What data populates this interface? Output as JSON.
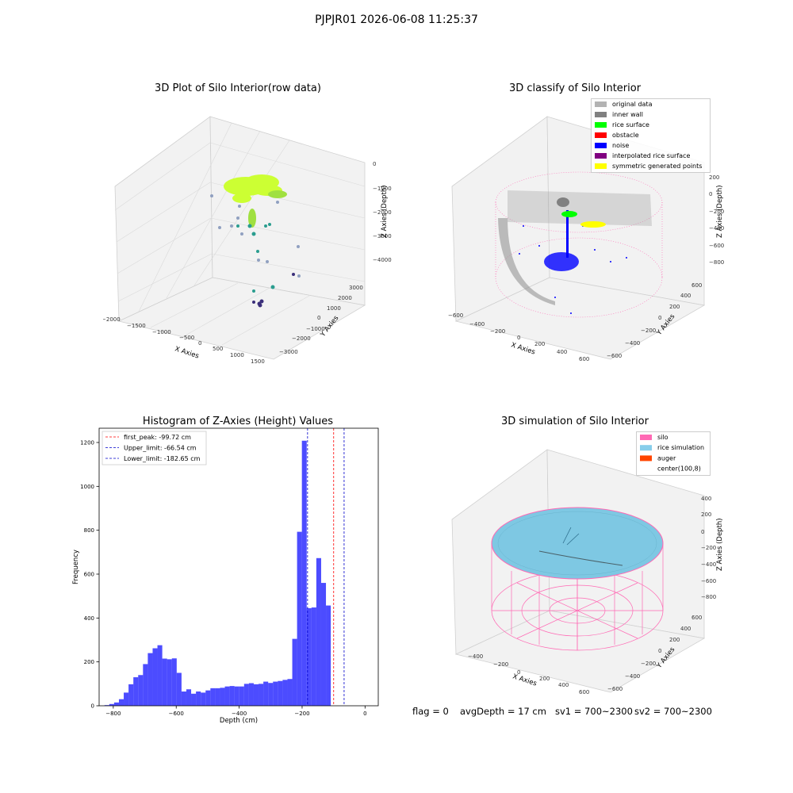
{
  "figure": {
    "suptitle": "PJPJR01 2026-06-08 11:25:37"
  },
  "panel_raw": {
    "title": "3D Plot of Silo Interior(row data)",
    "xlabel": "X Axies",
    "ylabel": "Y Axies",
    "zlabel": "Z Axies (Depth)",
    "x_ticks": [
      "−2000",
      "−1500",
      "−1000",
      "−500",
      "0",
      "500",
      "1000",
      "1500"
    ],
    "y_ticks": [
      "−3000",
      "−2000",
      "−1000",
      "0",
      "1000",
      "2000",
      "3000"
    ],
    "z_ticks": [
      "0",
      "−1000",
      "−2000",
      "−3000",
      "−4000"
    ]
  },
  "panel_classify": {
    "title": "3D classify of Silo Interior",
    "xlabel": "X Axies",
    "ylabel": "Y Axies",
    "zlabel": "Z Axies (Depth)",
    "x_ticks": [
      "−600",
      "−400",
      "−200",
      "0",
      "200",
      "400",
      "600"
    ],
    "y_ticks": [
      "−600",
      "−400",
      "−200",
      "0",
      "200",
      "400",
      "600"
    ],
    "z_ticks": [
      "200",
      "0",
      "−200",
      "−400",
      "−600",
      "−800"
    ],
    "legend": [
      {
        "label": "original data",
        "color": "#b3b3b3"
      },
      {
        "label": "inner wall",
        "color": "#808080"
      },
      {
        "label": "rice surface",
        "color": "#00ff00"
      },
      {
        "label": "obstacle",
        "color": "#ff0000"
      },
      {
        "label": "noise",
        "color": "#0000ff"
      },
      {
        "label": "interpolated rice surface",
        "color": "#800080"
      },
      {
        "label": "symmetric generated points",
        "color": "#ffff00"
      }
    ]
  },
  "panel_sim": {
    "title": "3D simulation of Silo Interior",
    "xlabel": "X Axies",
    "ylabel": "Y Axies",
    "zlabel": "Z Axies (Depth)",
    "x_ticks": [
      "−400",
      "−200",
      "0",
      "200",
      "400",
      "600"
    ],
    "y_ticks": [
      "−600",
      "−400",
      "−200",
      "0",
      "200",
      "400",
      "600"
    ],
    "z_ticks": [
      "400",
      "200",
      "0",
      "−200",
      "−400",
      "−600",
      "−800"
    ],
    "legend": [
      {
        "label": "silo",
        "color": "#ff69b4"
      },
      {
        "label": "rice simulation",
        "color": "#87ceeb"
      },
      {
        "label": "auger",
        "color": "#ff4500"
      },
      {
        "label": "center(100,8)",
        "color": "#ffffff"
      }
    ]
  },
  "footer": {
    "flag": "flag = 0",
    "avg": "avgDepth = 17 cm",
    "sv1": "sv1 = 700~2300",
    "sv2": "sv2 = 700~2300"
  },
  "chart_data": {
    "type": "bar",
    "title": "Histogram of Z-Axies (Height) Values",
    "xlabel": "Depth (cm)",
    "ylabel": "Frequency",
    "xlim": [
      -845,
      42
    ],
    "ylim": [
      0,
      1265
    ],
    "x_ticks": [
      -800,
      -600,
      -400,
      -200,
      0
    ],
    "y_ticks": [
      0,
      200,
      400,
      600,
      800,
      1000,
      1200
    ],
    "bin_width": 15.3,
    "bin_start": -828,
    "values": [
      3,
      8,
      15,
      30,
      60,
      98,
      130,
      140,
      190,
      240,
      262,
      276,
      215,
      212,
      216,
      150,
      65,
      75,
      55,
      65,
      60,
      70,
      80,
      80,
      82,
      88,
      90,
      88,
      88,
      100,
      103,
      98,
      100,
      110,
      104,
      110,
      113,
      118,
      122,
      305,
      793,
      1208,
      445,
      448,
      673,
      560,
      457
    ],
    "lines": [
      {
        "label": "first_peak: -99.72 cm",
        "x": -99.72,
        "color": "#ff0000"
      },
      {
        "label": "Upper_limit: -66.54 cm",
        "x": -66.54,
        "color": "#0000cc"
      },
      {
        "label": "Lower_limit: -182.65 cm",
        "x": -182.65,
        "color": "#0000cc"
      }
    ],
    "bar_color": "#0000ff"
  }
}
